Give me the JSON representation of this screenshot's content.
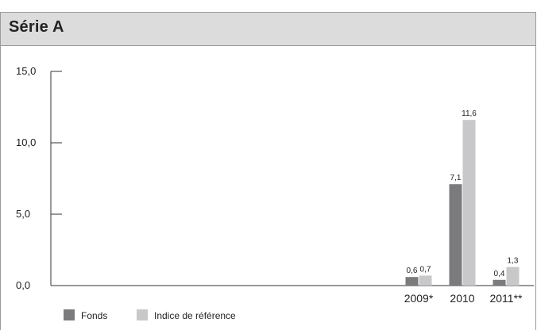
{
  "panel": {
    "title": "Série A"
  },
  "colors": {
    "fonds": "#7b7b7d",
    "indice": "#c8c8ca",
    "axis": "#333333",
    "header_bg": "#dcdcdc"
  },
  "chart_data": {
    "type": "bar",
    "title": "Série A",
    "xlabel": "",
    "ylabel": "",
    "ylim": [
      0,
      15
    ],
    "yticks": [
      "15,0",
      "10,0",
      "5,0",
      "0,0"
    ],
    "ytick_values": [
      15,
      10,
      5,
      0
    ],
    "categories": [
      "2009*",
      "2010",
      "2011**"
    ],
    "series": [
      {
        "name": "Fonds",
        "values": [
          0.6,
          7.1,
          0.4
        ],
        "labels": [
          "0,6",
          "7,1",
          "0,4"
        ]
      },
      {
        "name": "Indice de référence",
        "values": [
          0.7,
          11.6,
          1.3
        ],
        "labels": [
          "0,7",
          "11,6",
          "1,3"
        ]
      }
    ],
    "grid": false,
    "legend": "bottom-left"
  }
}
